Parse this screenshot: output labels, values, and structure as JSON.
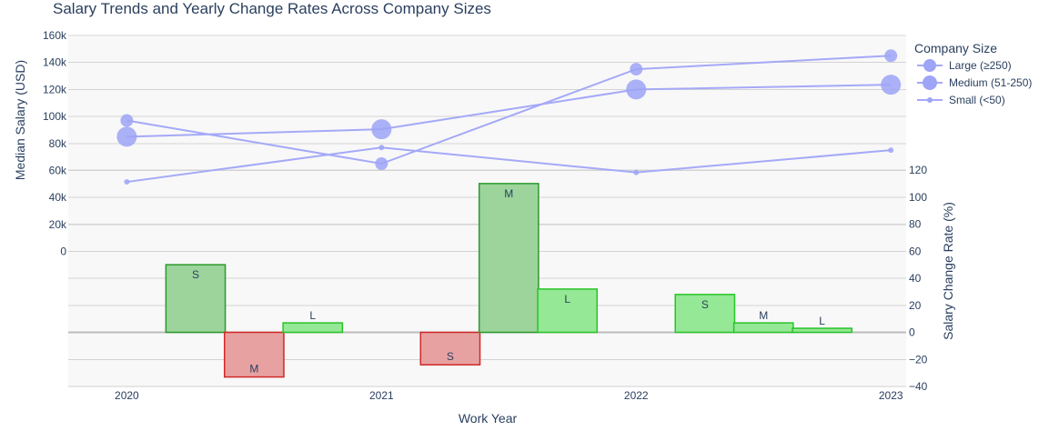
{
  "chart_data": {
    "type": "line+bar",
    "title": "Salary Trends and Yearly Change Rates Across Company Sizes",
    "xlabel": "Work Year",
    "ylabel_left": "Median Salary (USD)",
    "ylabel_right": "Salary Change Rate (%)",
    "x": [
      2020,
      2021,
      2022,
      2023
    ],
    "x_tick_labels": [
      "2020",
      "2021",
      "2022",
      "2023"
    ],
    "y_left": {
      "ticks": [
        0,
        20000,
        40000,
        60000,
        80000,
        100000,
        120000,
        140000,
        160000
      ],
      "tick_labels": [
        "0",
        "20k",
        "40k",
        "60k",
        "80k",
        "100k",
        "120k",
        "140k",
        "160k"
      ]
    },
    "y_right": {
      "ticks": [
        -40,
        -20,
        0,
        20,
        40,
        60,
        80,
        100,
        120
      ],
      "tick_labels": [
        "−40",
        "−20",
        "0",
        "20",
        "40",
        "60",
        "80",
        "100",
        "120"
      ]
    },
    "legend": {
      "title": "Company Size",
      "placement": "top-right"
    },
    "colors": {
      "line": "#a4a9f8",
      "marker": "#9ea4f6",
      "pos_fill": "#9cd49c",
      "pos_stroke": "#2b9a2b",
      "neg_fill": "#e8a1a1",
      "neg_stroke": "#d02828",
      "pos_fill_light": "#95e895",
      "pos_stroke_light": "#28c428",
      "plot_bg": "#f8f8f8",
      "grid": "#d3d3d3"
    },
    "series": [
      {
        "name": "Large (≥250)",
        "marker_size": 14,
        "values": [
          97000,
          65000,
          135000,
          145000
        ]
      },
      {
        "name": "Medium (51-250)",
        "marker_size": 22,
        "values": [
          85000,
          90500,
          120000,
          123500
        ]
      },
      {
        "name": "Small (<50)",
        "marker_size": 6,
        "values": [
          51500,
          77000,
          58500,
          75000
        ]
      }
    ],
    "bars": [
      {
        "label": "S",
        "x_center": 2020.27,
        "value": 50,
        "style": "pos"
      },
      {
        "label": "M",
        "x_center": 2020.5,
        "value": -33,
        "style": "neg"
      },
      {
        "label": "L",
        "x_center": 2020.73,
        "value": 7,
        "style": "pos_light"
      },
      {
        "label": "S",
        "x_center": 2021.27,
        "value": -24,
        "style": "neg"
      },
      {
        "label": "M",
        "x_center": 2021.5,
        "value": 110,
        "style": "pos"
      },
      {
        "label": "L",
        "x_center": 2021.73,
        "value": 32,
        "style": "pos_light"
      },
      {
        "label": "S",
        "x_center": 2022.27,
        "value": 28,
        "style": "pos_light"
      },
      {
        "label": "M",
        "x_center": 2022.5,
        "value": 7,
        "style": "pos_light"
      },
      {
        "label": "L",
        "x_center": 2022.73,
        "value": 3,
        "style": "pos_light"
      }
    ]
  }
}
